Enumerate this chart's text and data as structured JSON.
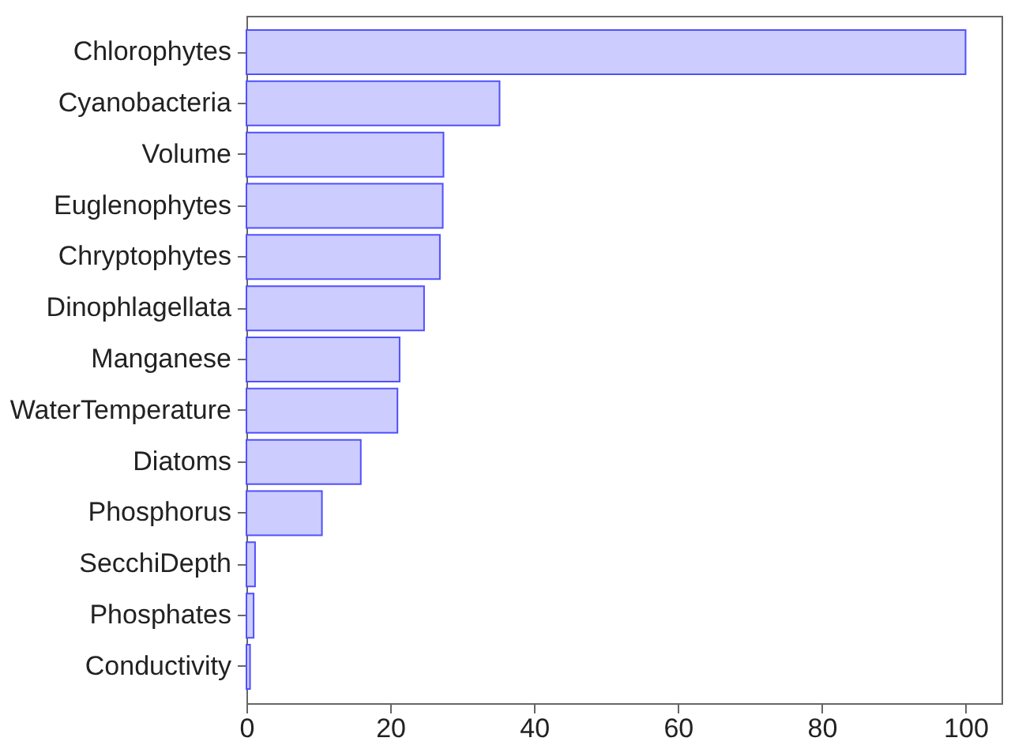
{
  "chart_data": {
    "type": "bar",
    "orientation": "horizontal",
    "categories": [
      "Chlorophytes",
      "Cyanobacteria",
      "Volume",
      "Euglenophytes",
      "Chryptophytes",
      "Dinophlagellata",
      "Manganese",
      "WaterTemperature",
      "Diatoms",
      "Phosphorus",
      "SecchiDepth",
      "Phosphates",
      "Conductivity"
    ],
    "values": [
      100,
      35.2,
      27.4,
      27.3,
      26.9,
      24.7,
      21.3,
      21.0,
      15.9,
      10.5,
      1.2,
      1.0,
      0.5
    ],
    "color": "#ccccff",
    "xlim": [
      0,
      105
    ],
    "xticks": [
      0,
      20,
      40,
      60,
      80,
      100
    ],
    "grid": false
  }
}
